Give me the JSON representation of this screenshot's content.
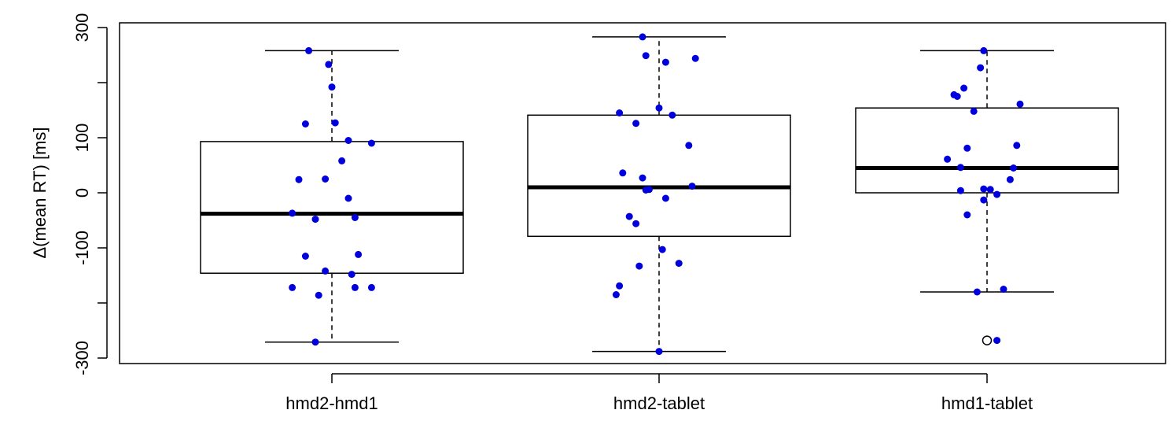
{
  "chart_data": {
    "type": "boxplot",
    "title": "",
    "xlabel": "",
    "ylabel": "Δ(mean RT) [ms]",
    "ylim": [
      -300,
      300
    ],
    "yticks": [
      300,
      100,
      0,
      -100,
      -300
    ],
    "grid": false,
    "legend": "none",
    "categories": [
      "hmd2-hmd1",
      "hmd2-tablet",
      "hmd1-tablet"
    ],
    "box_color": "#000000",
    "point_color": "#0000dd",
    "boxes": [
      {
        "name": "hmd2-hmd1",
        "whisker_low": -271,
        "q1": -146,
        "median": -38,
        "q3": 93,
        "whisker_high": 258,
        "outliers": [],
        "points": [
          {
            "j": -0.07,
            "y": 258
          },
          {
            "j": -0.01,
            "y": 233
          },
          {
            "j": 0.0,
            "y": 192
          },
          {
            "j": 0.01,
            "y": 127
          },
          {
            "j": -0.08,
            "y": 125
          },
          {
            "j": 0.05,
            "y": 95
          },
          {
            "j": 0.12,
            "y": 90
          },
          {
            "j": 0.03,
            "y": 58
          },
          {
            "j": -0.1,
            "y": 24
          },
          {
            "j": -0.02,
            "y": 25
          },
          {
            "j": 0.05,
            "y": -10
          },
          {
            "j": -0.12,
            "y": -37
          },
          {
            "j": 0.07,
            "y": -45
          },
          {
            "j": -0.05,
            "y": -48
          },
          {
            "j": 0.08,
            "y": -112
          },
          {
            "j": -0.08,
            "y": -115
          },
          {
            "j": -0.02,
            "y": -142
          },
          {
            "j": 0.06,
            "y": -148
          },
          {
            "j": -0.12,
            "y": -172
          },
          {
            "j": 0.07,
            "y": -172
          },
          {
            "j": 0.12,
            "y": -172
          },
          {
            "j": -0.04,
            "y": -186
          },
          {
            "j": -0.05,
            "y": -271
          }
        ]
      },
      {
        "name": "hmd2-tablet",
        "whisker_low": -288,
        "q1": -79,
        "median": 10,
        "q3": 141,
        "whisker_high": 283,
        "outliers": [],
        "points": [
          {
            "j": -0.05,
            "y": 283
          },
          {
            "j": -0.04,
            "y": 249
          },
          {
            "j": 0.02,
            "y": 237
          },
          {
            "j": 0.11,
            "y": 244
          },
          {
            "j": 0.0,
            "y": 154
          },
          {
            "j": -0.12,
            "y": 145
          },
          {
            "j": 0.04,
            "y": 141
          },
          {
            "j": -0.07,
            "y": 126
          },
          {
            "j": 0.09,
            "y": 86
          },
          {
            "j": -0.11,
            "y": 36
          },
          {
            "j": -0.05,
            "y": 27
          },
          {
            "j": -0.04,
            "y": 5
          },
          {
            "j": -0.03,
            "y": 6
          },
          {
            "j": 0.1,
            "y": 12
          },
          {
            "j": 0.02,
            "y": -10
          },
          {
            "j": -0.09,
            "y": -43
          },
          {
            "j": -0.07,
            "y": -56
          },
          {
            "j": 0.01,
            "y": -103
          },
          {
            "j": -0.06,
            "y": -133
          },
          {
            "j": 0.06,
            "y": -128
          },
          {
            "j": -0.12,
            "y": -169
          },
          {
            "j": -0.13,
            "y": -185
          },
          {
            "j": 0.0,
            "y": -288
          }
        ]
      },
      {
        "name": "hmd1-tablet",
        "whisker_low": -180,
        "q1": 0,
        "median": 45,
        "q3": 154,
        "whisker_high": 258,
        "outliers": [
          -268
        ],
        "points": [
          {
            "j": -0.01,
            "y": 258
          },
          {
            "j": -0.02,
            "y": 227
          },
          {
            "j": -0.07,
            "y": 190
          },
          {
            "j": -0.1,
            "y": 178
          },
          {
            "j": -0.09,
            "y": 175
          },
          {
            "j": 0.1,
            "y": 161
          },
          {
            "j": -0.04,
            "y": 148
          },
          {
            "j": 0.09,
            "y": 86
          },
          {
            "j": -0.06,
            "y": 81
          },
          {
            "j": -0.12,
            "y": 61
          },
          {
            "j": -0.08,
            "y": 46
          },
          {
            "j": 0.08,
            "y": 45
          },
          {
            "j": 0.07,
            "y": 24
          },
          {
            "j": -0.08,
            "y": 4
          },
          {
            "j": -0.01,
            "y": 7
          },
          {
            "j": 0.01,
            "y": 6
          },
          {
            "j": 0.03,
            "y": -3
          },
          {
            "j": -0.01,
            "y": -13
          },
          {
            "j": -0.06,
            "y": -40
          },
          {
            "j": -0.03,
            "y": -180
          },
          {
            "j": 0.05,
            "y": -175
          },
          {
            "j": 0.03,
            "y": -268
          }
        ]
      }
    ]
  }
}
